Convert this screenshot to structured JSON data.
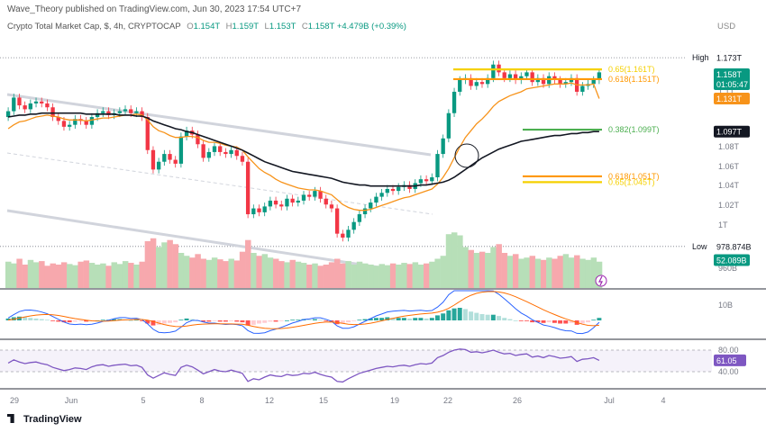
{
  "header": {
    "published": "Wave_Theory published on TradingView.com, Jun 30, 2023 17:54 UTC+7",
    "symbol": "Crypto Total Market Cap, $, 4h, CRYPTOCAP",
    "open_label": "O",
    "open": "1.154T",
    "high_label": "H",
    "high": "1.159T",
    "low_label": "L",
    "low": "1.153T",
    "close_label": "C",
    "close": "1.158T",
    "change": "+4.479B (+0.39%)",
    "currency": "USD"
  },
  "branding": {
    "logo_text": "TradingView"
  },
  "price_scale": {
    "ticks": [
      "1.12T",
      "1.1T",
      "1.08T",
      "1.06T",
      "1.04T",
      "1.02T",
      "1T",
      "960B"
    ],
    "high_label": "High",
    "high_value": "1.173T",
    "low_label": "Low",
    "low_value": "978.874B",
    "current_price": "1.158T",
    "countdown": "01:05:47",
    "ema_value": "1.131T",
    "ma_value": "1.097T",
    "volume_value": "52.089B"
  },
  "macd_scale": {
    "ticks": [
      "10B"
    ]
  },
  "rsi_scale": {
    "ticks": [
      "80.00",
      "40.00"
    ],
    "current": "61.05",
    "band": [
      40,
      80
    ]
  },
  "time_axis": {
    "labels": [
      "29",
      "Jun",
      "5",
      "8",
      "12",
      "15",
      "19",
      "22",
      "26",
      "Jul",
      "4"
    ]
  },
  "fib_levels": [
    {
      "ratio": "0.65",
      "value": "1.161T",
      "color": "#f5d000"
    },
    {
      "ratio": "0.618",
      "value": "1.151T",
      "color": "#ff9800"
    },
    {
      "ratio": "0.382",
      "value": "1.099T",
      "color": "#4caf50"
    },
    {
      "ratio": "0.618",
      "value": "1.051T",
      "color": "#ff9800"
    },
    {
      "ratio": "0.65",
      "value": "1.045T",
      "color": "#f5d000"
    }
  ],
  "colors": {
    "up": "#089981",
    "down": "#f23645",
    "ema": "#f7931a",
    "ma": "#131722",
    "rsi": "#7e57c2",
    "vol_up": "#b7dfb8",
    "vol_down": "#f7a8ad",
    "trend": "#d1d4dc"
  },
  "chart_data": {
    "type": "candlestick",
    "symbol": "Crypto Total Market Cap, $, 4h, CRYPTOCAP",
    "timeframe": "4h",
    "x_labels": [
      "29",
      "Jun",
      "5",
      "8",
      "12",
      "15",
      "19",
      "22",
      "26",
      "Jul",
      "4"
    ],
    "ylim": [
      0.96,
      1.18
    ],
    "y_unit": "T",
    "ohlc_last": {
      "open": 1.154,
      "high": 1.159,
      "low": 1.153,
      "close": 1.158
    },
    "period_high": 1.173,
    "period_low": 0.978874,
    "close_series": [
      1.118,
      1.132,
      1.124,
      1.12,
      1.126,
      1.128,
      1.126,
      1.122,
      1.112,
      1.108,
      1.102,
      1.104,
      1.11,
      1.108,
      1.104,
      1.112,
      1.116,
      1.118,
      1.114,
      1.116,
      1.118,
      1.12,
      1.116,
      1.118,
      1.112,
      1.078,
      1.058,
      1.066,
      1.074,
      1.068,
      1.064,
      1.092,
      1.098,
      1.094,
      1.084,
      1.07,
      1.076,
      1.082,
      1.076,
      1.074,
      1.078,
      1.072,
      1.066,
      1.012,
      1.018,
      1.014,
      1.02,
      1.026,
      1.022,
      1.02,
      1.028,
      1.024,
      1.026,
      1.032,
      1.03,
      1.036,
      1.028,
      1.022,
      1.018,
      0.992,
      0.988,
      0.996,
      1.004,
      1.012,
      1.018,
      1.024,
      1.03,
      1.034,
      1.038,
      1.036,
      1.04,
      1.042,
      1.038,
      1.044,
      1.048,
      1.046,
      1.05,
      1.074,
      1.09,
      1.116,
      1.138,
      1.15,
      1.152,
      1.144,
      1.148,
      1.146,
      1.152,
      1.166,
      1.158,
      1.152,
      1.156,
      1.15,
      1.154,
      1.158,
      1.148,
      1.152,
      1.146,
      1.154,
      1.15,
      1.146,
      1.148,
      1.152,
      1.138,
      1.144,
      1.146,
      1.15,
      1.158
    ],
    "ema_series": [
      1.1,
      1.104,
      1.107,
      1.108,
      1.11,
      1.112,
      1.113,
      1.114,
      1.113,
      1.112,
      1.11,
      1.109,
      1.109,
      1.109,
      1.108,
      1.109,
      1.11,
      1.111,
      1.111,
      1.112,
      1.113,
      1.114,
      1.114,
      1.115,
      1.114,
      1.109,
      1.102,
      1.098,
      1.096,
      1.093,
      1.091,
      1.091,
      1.092,
      1.092,
      1.091,
      1.088,
      1.086,
      1.086,
      1.085,
      1.083,
      1.082,
      1.081,
      1.078,
      1.071,
      1.065,
      1.059,
      1.055,
      1.052,
      1.048,
      1.045,
      1.043,
      1.041,
      1.039,
      1.038,
      1.037,
      1.037,
      1.036,
      1.034,
      1.032,
      1.027,
      1.022,
      1.019,
      1.017,
      1.016,
      1.016,
      1.017,
      1.019,
      1.021,
      1.023,
      1.025,
      1.027,
      1.029,
      1.03,
      1.032,
      1.034,
      1.036,
      1.038,
      1.043,
      1.05,
      1.059,
      1.07,
      1.081,
      1.091,
      1.098,
      1.105,
      1.11,
      1.116,
      1.123,
      1.128,
      1.131,
      1.134,
      1.136,
      1.138,
      1.141,
      1.142,
      1.143,
      1.144,
      1.145,
      1.146,
      1.146,
      1.146,
      1.147,
      1.145,
      1.145,
      1.145,
      1.146,
      1.131
    ],
    "ma_series": [
      1.112,
      1.113,
      1.114,
      1.114,
      1.115,
      1.115,
      1.116,
      1.116,
      1.116,
      1.116,
      1.116,
      1.116,
      1.116,
      1.116,
      1.115,
      1.115,
      1.115,
      1.115,
      1.115,
      1.115,
      1.114,
      1.114,
      1.114,
      1.113,
      1.113,
      1.111,
      1.108,
      1.106,
      1.104,
      1.102,
      1.1,
      1.099,
      1.097,
      1.096,
      1.094,
      1.092,
      1.09,
      1.088,
      1.086,
      1.084,
      1.082,
      1.08,
      1.078,
      1.075,
      1.072,
      1.069,
      1.066,
      1.064,
      1.062,
      1.06,
      1.058,
      1.056,
      1.055,
      1.054,
      1.053,
      1.052,
      1.051,
      1.05,
      1.049,
      1.047,
      1.045,
      1.044,
      1.043,
      1.042,
      1.042,
      1.041,
      1.041,
      1.041,
      1.041,
      1.041,
      1.041,
      1.041,
      1.041,
      1.041,
      1.042,
      1.042,
      1.043,
      1.044,
      1.045,
      1.047,
      1.05,
      1.054,
      1.058,
      1.062,
      1.066,
      1.07,
      1.073,
      1.076,
      1.079,
      1.081,
      1.083,
      1.085,
      1.087,
      1.088,
      1.089,
      1.09,
      1.091,
      1.092,
      1.093,
      1.093,
      1.094,
      1.095,
      1.095,
      1.096,
      1.096,
      1.097,
      1.097
    ],
    "volume_bars": [
      0.45,
      0.42,
      0.5,
      0.4,
      0.48,
      0.44,
      0.46,
      0.38,
      0.42,
      0.4,
      0.44,
      0.41,
      0.39,
      0.45,
      0.47,
      0.43,
      0.4,
      0.42,
      0.38,
      0.44,
      0.41,
      0.46,
      0.43,
      0.4,
      0.45,
      0.8,
      0.85,
      0.7,
      0.78,
      0.82,
      0.75,
      0.6,
      0.55,
      0.52,
      0.58,
      0.5,
      0.48,
      0.52,
      0.49,
      0.46,
      0.5,
      0.47,
      0.62,
      0.82,
      0.6,
      0.55,
      0.58,
      0.52,
      0.5,
      0.46,
      0.44,
      0.48,
      0.45,
      0.43,
      0.4,
      0.42,
      0.38,
      0.4,
      0.44,
      0.5,
      0.42,
      0.46,
      0.4,
      0.45,
      0.42,
      0.4,
      0.38,
      0.41,
      0.39,
      0.42,
      0.4,
      0.43,
      0.41,
      0.44,
      0.4,
      0.42,
      0.45,
      0.5,
      0.55,
      0.92,
      0.95,
      0.9,
      0.7,
      0.65,
      0.6,
      0.62,
      0.6,
      0.7,
      0.75,
      0.6,
      0.55,
      0.58,
      0.5,
      0.52,
      0.55,
      0.5,
      0.48,
      0.52,
      0.5,
      0.55,
      0.58,
      0.52,
      0.56,
      0.5,
      0.48,
      0.52,
      0.45
    ],
    "macd_hist": [
      0.3,
      0.5,
      0.6,
      0.5,
      0.4,
      0.3,
      0.2,
      0.1,
      -0.1,
      -0.2,
      -0.3,
      -0.3,
      -0.2,
      -0.1,
      -0.2,
      -0.1,
      0.0,
      0.1,
      0.1,
      0.2,
      0.2,
      0.1,
      0.0,
      0.1,
      -0.1,
      -0.5,
      -0.8,
      -0.7,
      -0.5,
      -0.4,
      -0.3,
      0.1,
      0.3,
      0.2,
      0.0,
      -0.2,
      -0.2,
      -0.1,
      -0.2,
      -0.2,
      -0.1,
      -0.2,
      -0.3,
      -0.8,
      -0.7,
      -0.5,
      -0.4,
      -0.2,
      -0.2,
      -0.1,
      0.0,
      0.1,
      0.1,
      0.2,
      0.1,
      0.2,
      0.1,
      -0.1,
      -0.2,
      -0.6,
      -0.5,
      -0.3,
      -0.1,
      0.1,
      0.2,
      0.3,
      0.4,
      0.4,
      0.5,
      0.4,
      0.4,
      0.4,
      0.3,
      0.4,
      0.4,
      0.3,
      0.4,
      0.8,
      1.1,
      1.6,
      1.9,
      2.0,
      1.8,
      1.4,
      1.2,
      1.0,
      0.9,
      0.9,
      0.7,
      0.4,
      0.2,
      0.0,
      -0.1,
      -0.1,
      -0.3,
      -0.3,
      -0.4,
      -0.3,
      -0.4,
      -0.5,
      -0.5,
      -0.4,
      -0.7,
      -0.5,
      -0.3,
      0.1,
      0.4
    ],
    "rsi_series": [
      56,
      62,
      58,
      55,
      57,
      58,
      55,
      53,
      48,
      45,
      42,
      44,
      47,
      46,
      44,
      49,
      52,
      53,
      50,
      52,
      53,
      54,
      51,
      52,
      48,
      34,
      28,
      33,
      38,
      35,
      33,
      48,
      52,
      49,
      43,
      36,
      40,
      44,
      41,
      40,
      43,
      40,
      37,
      22,
      27,
      25,
      30,
      34,
      32,
      31,
      35,
      33,
      34,
      37,
      36,
      39,
      35,
      32,
      30,
      22,
      21,
      27,
      32,
      37,
      40,
      43,
      46,
      48,
      50,
      49,
      51,
      52,
      50,
      53,
      55,
      54,
      56,
      66,
      70,
      76,
      80,
      82,
      81,
      76,
      77,
      75,
      77,
      80,
      76,
      73,
      74,
      70,
      72,
      73,
      67,
      69,
      66,
      70,
      68,
      65,
      66,
      68,
      59,
      63,
      64,
      66,
      61
    ]
  }
}
